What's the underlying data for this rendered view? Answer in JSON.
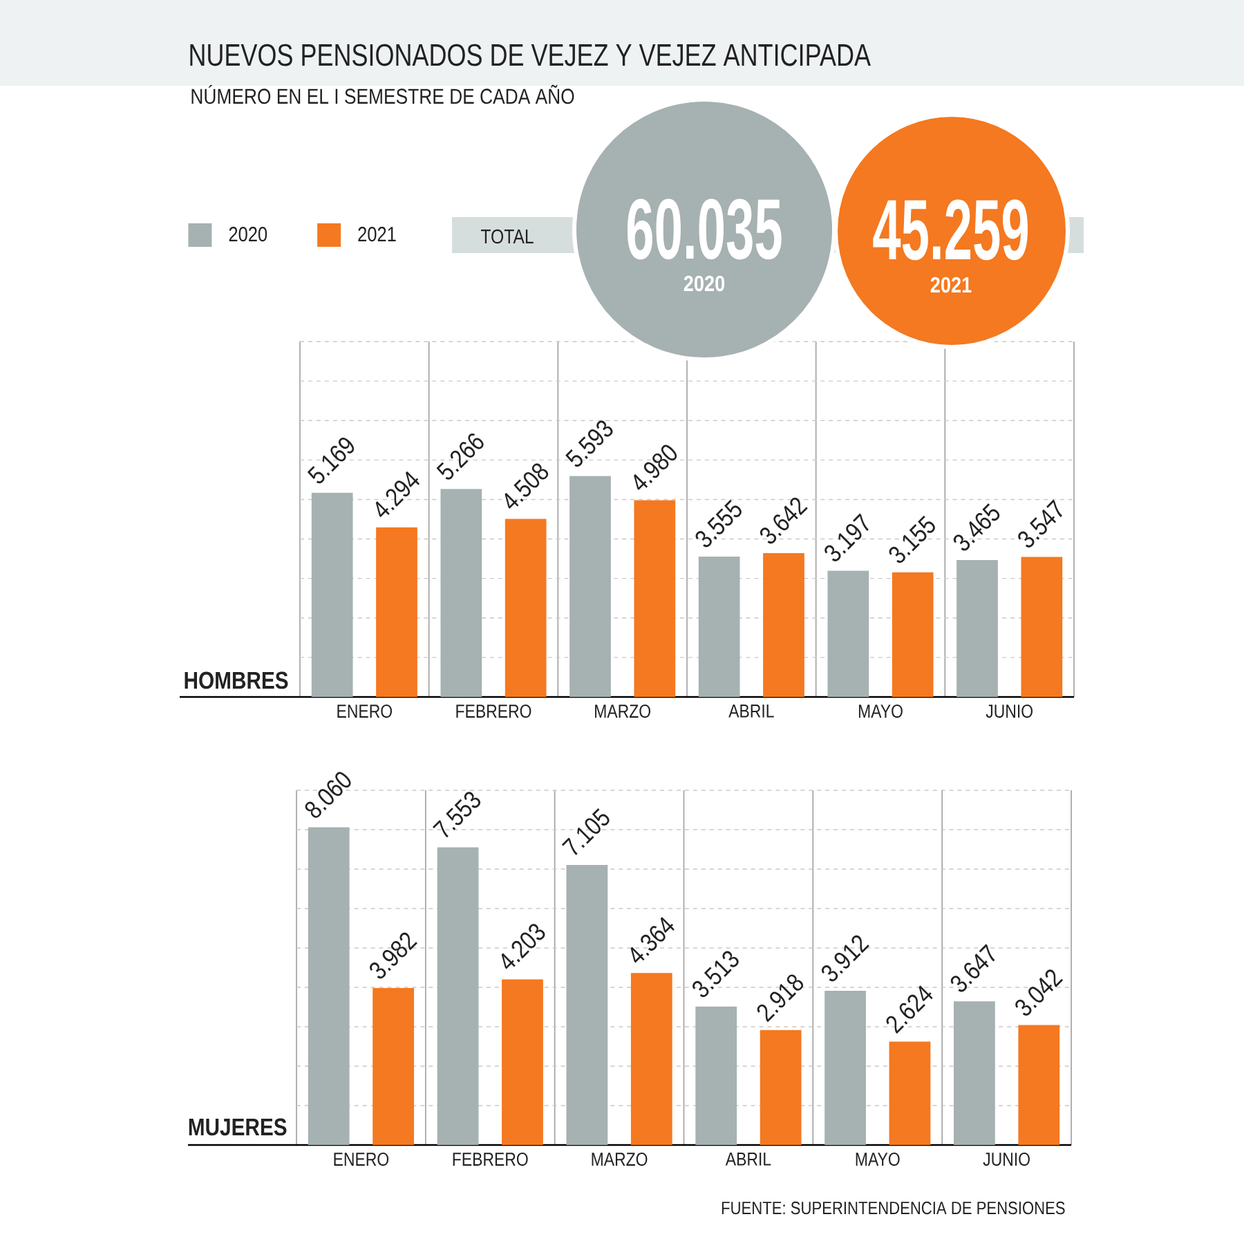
{
  "chart_data": [
    {
      "type": "bar",
      "title": "NUEVOS PENSIONADOS DE VEJEZ Y VEJEZ ANTICIPADA",
      "subtitle": "NÚMERO EN EL I SEMESTRE DE CADA AÑO",
      "ylabel": "HOMBRES",
      "categories": [
        "ENERO",
        "FEBRERO",
        "MARZO",
        "ABRIL",
        "MAYO",
        "JUNIO"
      ],
      "series": [
        {
          "name": "2020",
          "color": "#a6b1b1",
          "values": [
            5169,
            5266,
            5593,
            3555,
            3197,
            3465
          ],
          "value_labels": [
            "5.169",
            "5.266",
            "5.593",
            "3.555",
            "3.197",
            "3.465"
          ]
        },
        {
          "name": "2021",
          "color": "#f47920",
          "values": [
            4294,
            4508,
            4980,
            3642,
            3155,
            3547
          ],
          "value_labels": [
            "4.294",
            "4.508",
            "4.980",
            "3.642",
            "3.155",
            "3.547"
          ]
        }
      ],
      "ylim": [
        0,
        9000
      ],
      "yticks": [
        {
          "value": 0,
          "label": null
        },
        {
          "value": 1000,
          "label": null
        },
        {
          "value": 2000,
          "label": null
        },
        {
          "value": 3000,
          "label": null
        },
        {
          "value": 4000,
          "label": null
        },
        {
          "value": 5000,
          "label": null
        },
        {
          "value": 6000,
          "label": null
        },
        {
          "value": 7000,
          "label": null
        },
        {
          "value": 8000,
          "label": null
        },
        {
          "value": 9000,
          "label": null
        }
      ],
      "grid": true,
      "legend": "top left",
      "tick_labels": "x",
      "annotations": [
        "TOTAL",
        "60.035",
        "2020",
        "45.259",
        "2021"
      ]
    },
    {
      "type": "bar",
      "ylabel": "MUJERES",
      "categories": [
        "ENERO",
        "FEBRERO",
        "MARZO",
        "ABRIL",
        "MAYO",
        "JUNIO"
      ],
      "series": [
        {
          "color": "#a6b1b1",
          "values": [
            8060,
            7553,
            7105,
            3513,
            3912,
            3647
          ],
          "value_labels": [
            "8.060",
            "7.553",
            "7.105",
            "3.513",
            "3.912",
            "3.647"
          ]
        },
        {
          "color": "#f47920",
          "values": [
            3982,
            4203,
            4364,
            2918,
            2624,
            3042
          ],
          "value_labels": [
            "3.982",
            "4.203",
            "4.364",
            "2.918",
            "2.624",
            "3.042"
          ]
        }
      ],
      "ylim": [
        0,
        9000
      ],
      "yticks": [
        {
          "value": 0,
          "label": null
        },
        {
          "value": 1000,
          "label": null
        },
        {
          "value": 2000,
          "label": null
        },
        {
          "value": 3000,
          "label": null
        },
        {
          "value": 4000,
          "label": null
        },
        {
          "value": 5000,
          "label": null
        },
        {
          "value": 6000,
          "label": null
        },
        {
          "value": 7000,
          "label": null
        },
        {
          "value": 8000,
          "label": null
        },
        {
          "value": 9000,
          "label": null
        }
      ],
      "grid": true,
      "legend": false,
      "tick_labels": "x",
      "annotations": [
        "FUENTE: SUPERINTENDENCIA DE PENSIONES"
      ]
    }
  ]
}
